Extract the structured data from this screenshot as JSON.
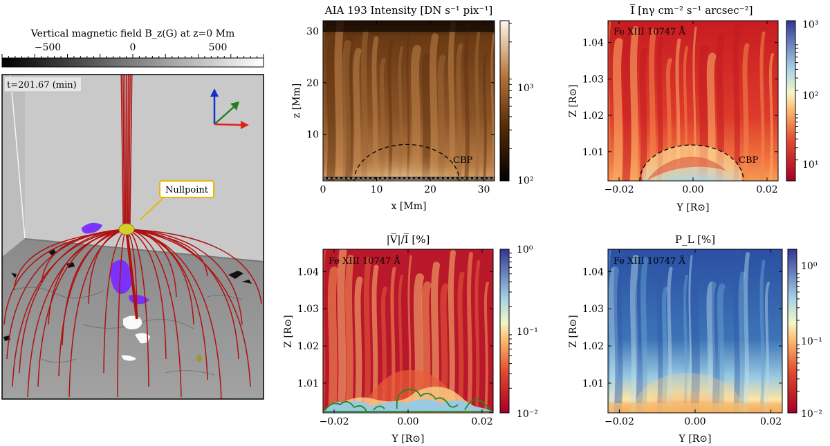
{
  "left_panel": {
    "colorbar_title": "Vertical magnetic field B_z(G) at z=0 Mm",
    "colorbar_ticks": [
      "−500",
      "0",
      "500"
    ],
    "time_label": "t=201.67 (min)",
    "nullpoint_label": "Nullpoint",
    "colors": {
      "fieldlines": "#b01010",
      "nullpoint": "#d6cf2a",
      "blobs": "#7a2cff",
      "axis_x": "#e0201a",
      "axis_y": "#208020",
      "axis_z": "#1030d0"
    }
  },
  "chart_data": [
    {
      "id": "aia",
      "type": "heatmap",
      "title": "AIA 193 Intensity [DN s⁻¹ pix⁻¹]",
      "xlabel": "x [Mm]",
      "ylabel": "z [Mm]",
      "xlim": [
        0,
        32
      ],
      "ylim": [
        1,
        32
      ],
      "xticks": [
        0,
        10,
        20,
        30
      ],
      "yticks": [
        10,
        20,
        30
      ],
      "colorbar": {
        "scale": "log",
        "range": [
          100,
          3000
        ],
        "ticks": [
          "10²",
          "10³"
        ]
      },
      "annotation": "CBP",
      "line_label": ""
    },
    {
      "id": "intensity",
      "type": "heatmap",
      "title": "I̅  [nγ cm⁻² s⁻¹ arcsec⁻²]",
      "xlabel": "Y [R⊙]",
      "ylabel": "Z [R⊙]",
      "xlim": [
        -0.023,
        0.023
      ],
      "ylim": [
        1.002,
        1.046
      ],
      "xticks": [
        "−0.02",
        "0.00",
        "0.02"
      ],
      "yticks": [
        "1.01",
        "1.02",
        "1.03",
        "1.04"
      ],
      "colorbar": {
        "scale": "log",
        "range": [
          5,
          1000
        ],
        "ticks": [
          "10¹",
          "10²",
          "10³"
        ]
      },
      "annotation": "CBP",
      "line_label": "Fe XIII 10747 Å"
    },
    {
      "id": "vi",
      "type": "heatmap",
      "title": "|V̅|/I̅  [%]",
      "xlabel": "Y [R⊙]",
      "ylabel": "Z [R⊙]",
      "xlim": [
        -0.023,
        0.023
      ],
      "ylim": [
        1.002,
        1.046
      ],
      "xticks": [
        "−0.02",
        "0.00",
        "0.02"
      ],
      "yticks": [
        "1.01",
        "1.02",
        "1.03",
        "1.04"
      ],
      "colorbar": {
        "scale": "log",
        "range": [
          0.01,
          1
        ],
        "ticks": [
          "10⁻²",
          "10⁻¹",
          "10⁰"
        ]
      },
      "annotation": "",
      "line_label": "Fe XIII 10747 Å"
    },
    {
      "id": "pl",
      "type": "heatmap",
      "title": "P_L [%]",
      "xlabel": "Y [R⊙]",
      "ylabel": "Z [R⊙]",
      "xlim": [
        -0.023,
        0.023
      ],
      "ylim": [
        1.002,
        1.046
      ],
      "xticks": [
        "−0.02",
        "0.00",
        "0.02"
      ],
      "yticks": [
        "1.01",
        "1.02",
        "1.03",
        "1.04"
      ],
      "colorbar": {
        "scale": "log",
        "range": [
          0.01,
          2
        ],
        "ticks": [
          "10⁻²",
          "10⁻¹",
          "10⁰"
        ]
      },
      "annotation": "",
      "line_label": "Fe XIII 10747 Å"
    }
  ]
}
